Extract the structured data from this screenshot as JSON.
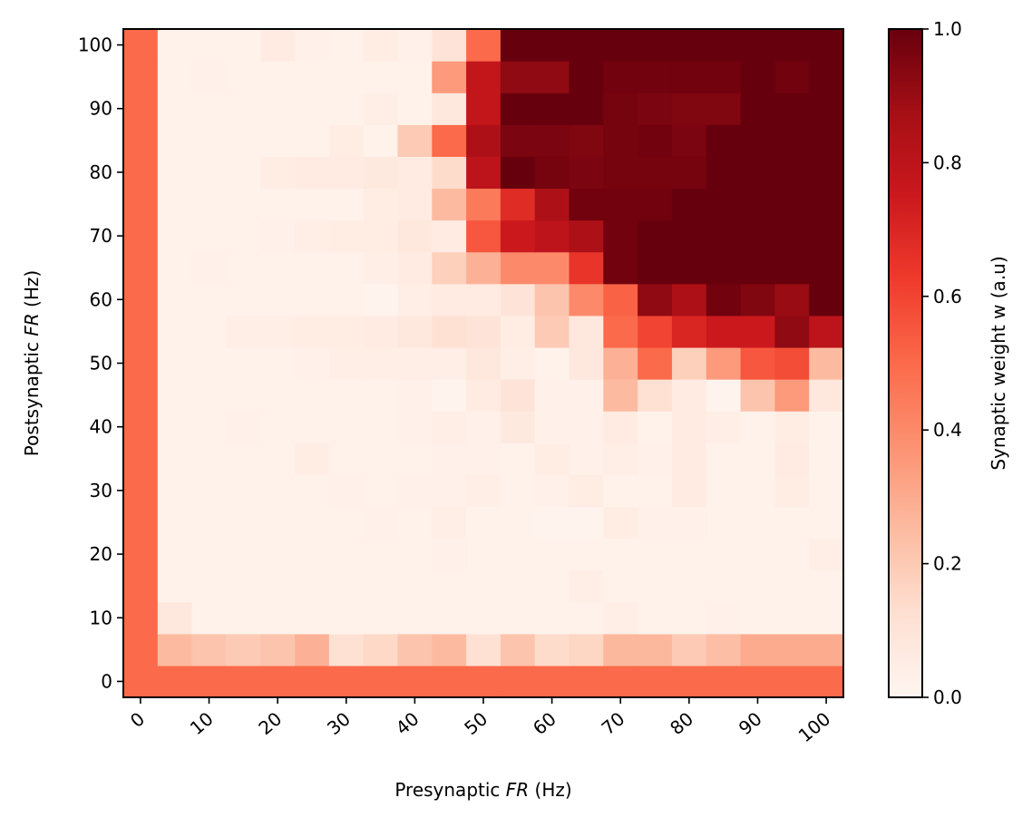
{
  "chart_data": {
    "type": "heatmap",
    "title": "",
    "xlabel_parts": [
      "Presynaptic ",
      "FR",
      " (Hz)"
    ],
    "ylabel_parts": [
      "Postsynaptic ",
      "FR",
      " (Hz)"
    ],
    "colorbar_label": "Synaptic weight w (a.u)",
    "colormap": "Reds",
    "grid": false,
    "x_values": [
      0,
      5,
      10,
      15,
      20,
      25,
      30,
      35,
      40,
      45,
      50,
      55,
      60,
      65,
      70,
      75,
      80,
      85,
      90,
      95,
      100
    ],
    "y_values": [
      0,
      5,
      10,
      15,
      20,
      25,
      30,
      35,
      40,
      45,
      50,
      55,
      60,
      65,
      70,
      75,
      80,
      85,
      90,
      95,
      100
    ],
    "xticks": [
      "0",
      "10",
      "20",
      "30",
      "40",
      "50",
      "60",
      "70",
      "80",
      "90",
      "100"
    ],
    "yticks": [
      "0",
      "10",
      "20",
      "30",
      "40",
      "50",
      "60",
      "70",
      "80",
      "90",
      "100"
    ],
    "colorbar_ticks": [
      "0.0",
      "0.2",
      "0.4",
      "0.6",
      "0.8",
      "1.0"
    ],
    "vmin": 0.0,
    "vmax": 1.0,
    "z_rows_bottom_to_top": [
      [
        0.5,
        0.5,
        0.5,
        0.5,
        0.5,
        0.5,
        0.5,
        0.5,
        0.5,
        0.5,
        0.5,
        0.5,
        0.5,
        0.5,
        0.5,
        0.5,
        0.5,
        0.5,
        0.5,
        0.5,
        0.5
      ],
      [
        0.5,
        0.25,
        0.22,
        0.2,
        0.22,
        0.28,
        0.12,
        0.15,
        0.22,
        0.25,
        0.12,
        0.22,
        0.14,
        0.16,
        0.26,
        0.26,
        0.2,
        0.24,
        0.3,
        0.3,
        0.3
      ],
      [
        0.5,
        0.08,
        0.02,
        0.02,
        0.02,
        0.02,
        0.02,
        0.02,
        0.02,
        0.02,
        0.02,
        0.02,
        0.02,
        0.02,
        0.04,
        0.02,
        0.02,
        0.03,
        0.02,
        0.02,
        0.02
      ],
      [
        0.5,
        0.02,
        0.02,
        0.02,
        0.02,
        0.02,
        0.02,
        0.02,
        0.02,
        0.02,
        0.02,
        0.02,
        0.02,
        0.04,
        0.02,
        0.02,
        0.02,
        0.02,
        0.02,
        0.02,
        0.02
      ],
      [
        0.5,
        0.02,
        0.02,
        0.02,
        0.02,
        0.02,
        0.02,
        0.02,
        0.02,
        0.03,
        0.02,
        0.02,
        0.02,
        0.02,
        0.02,
        0.02,
        0.02,
        0.02,
        0.02,
        0.02,
        0.04
      ],
      [
        0.5,
        0.02,
        0.02,
        0.02,
        0.02,
        0.02,
        0.02,
        0.03,
        0.02,
        0.04,
        0.02,
        0.02,
        0.01,
        0.01,
        0.05,
        0.03,
        0.03,
        0.02,
        0.02,
        0.02,
        0.02
      ],
      [
        0.5,
        0.02,
        0.02,
        0.02,
        0.02,
        0.02,
        0.03,
        0.02,
        0.03,
        0.03,
        0.04,
        0.02,
        0.03,
        0.05,
        0.02,
        0.02,
        0.06,
        0.02,
        0.02,
        0.05,
        0.02
      ],
      [
        0.5,
        0.02,
        0.02,
        0.02,
        0.02,
        0.05,
        0.02,
        0.02,
        0.02,
        0.03,
        0.03,
        0.02,
        0.05,
        0.03,
        0.04,
        0.03,
        0.06,
        0.02,
        0.02,
        0.06,
        0.02
      ],
      [
        0.5,
        0.02,
        0.02,
        0.03,
        0.02,
        0.02,
        0.02,
        0.02,
        0.03,
        0.04,
        0.03,
        0.07,
        0.03,
        0.03,
        0.06,
        0.02,
        0.06,
        0.04,
        0.02,
        0.05,
        0.02
      ],
      [
        0.5,
        0.02,
        0.02,
        0.02,
        0.02,
        0.02,
        0.02,
        0.02,
        0.03,
        0.01,
        0.06,
        0.1,
        0.03,
        0.03,
        0.25,
        0.12,
        0.06,
        0.01,
        0.22,
        0.35,
        0.08
      ],
      [
        0.5,
        0.02,
        0.02,
        0.02,
        0.02,
        0.03,
        0.04,
        0.04,
        0.04,
        0.04,
        0.08,
        0.04,
        0.02,
        0.08,
        0.28,
        0.5,
        0.18,
        0.35,
        0.55,
        0.58,
        0.25
      ],
      [
        0.5,
        0.02,
        0.02,
        0.04,
        0.04,
        0.05,
        0.05,
        0.06,
        0.08,
        0.12,
        0.1,
        0.05,
        0.2,
        0.08,
        0.5,
        0.6,
        0.7,
        0.75,
        0.75,
        0.92,
        0.8
      ],
      [
        0.5,
        0.02,
        0.02,
        0.02,
        0.02,
        0.02,
        0.02,
        0.01,
        0.04,
        0.06,
        0.06,
        0.1,
        0.22,
        0.4,
        0.52,
        0.92,
        0.85,
        0.98,
        0.95,
        0.9,
        1.0
      ],
      [
        0.5,
        0.02,
        0.03,
        0.02,
        0.02,
        0.02,
        0.02,
        0.04,
        0.06,
        0.18,
        0.28,
        0.4,
        0.4,
        0.65,
        0.98,
        1.0,
        1.0,
        1.0,
        1.0,
        1.0,
        1.0
      ],
      [
        0.5,
        0.02,
        0.02,
        0.02,
        0.03,
        0.04,
        0.05,
        0.05,
        0.08,
        0.06,
        0.55,
        0.75,
        0.8,
        0.85,
        0.98,
        1.0,
        1.0,
        1.0,
        1.0,
        1.0,
        1.0
      ],
      [
        0.5,
        0.02,
        0.02,
        0.02,
        0.02,
        0.02,
        0.02,
        0.05,
        0.06,
        0.25,
        0.45,
        0.68,
        0.85,
        0.98,
        0.98,
        0.98,
        1.0,
        1.0,
        1.0,
        1.0,
        1.0
      ],
      [
        0.5,
        0.02,
        0.02,
        0.02,
        0.05,
        0.06,
        0.06,
        0.07,
        0.06,
        0.14,
        0.8,
        1.0,
        0.97,
        0.96,
        0.97,
        0.97,
        0.97,
        1.0,
        1.0,
        1.0,
        1.0
      ],
      [
        0.5,
        0.02,
        0.02,
        0.02,
        0.02,
        0.02,
        0.05,
        0.02,
        0.2,
        0.5,
        0.85,
        0.96,
        0.96,
        0.95,
        0.97,
        0.98,
        0.96,
        1.0,
        1.0,
        1.0,
        1.0
      ],
      [
        0.5,
        0.02,
        0.02,
        0.02,
        0.02,
        0.02,
        0.02,
        0.04,
        0.02,
        0.08,
        0.78,
        1.0,
        1.0,
        1.0,
        0.97,
        0.96,
        0.95,
        0.95,
        1.0,
        1.0,
        1.0
      ],
      [
        0.5,
        0.02,
        0.03,
        0.02,
        0.02,
        0.02,
        0.02,
        0.02,
        0.02,
        0.35,
        0.78,
        0.92,
        0.92,
        1.0,
        0.98,
        0.98,
        0.98,
        0.98,
        1.0,
        0.98,
        1.0
      ],
      [
        0.5,
        0.02,
        0.02,
        0.02,
        0.06,
        0.03,
        0.02,
        0.05,
        0.03,
        0.1,
        0.5,
        1.0,
        1.0,
        1.0,
        1.0,
        1.0,
        1.0,
        1.0,
        1.0,
        1.0,
        1.0
      ]
    ]
  }
}
